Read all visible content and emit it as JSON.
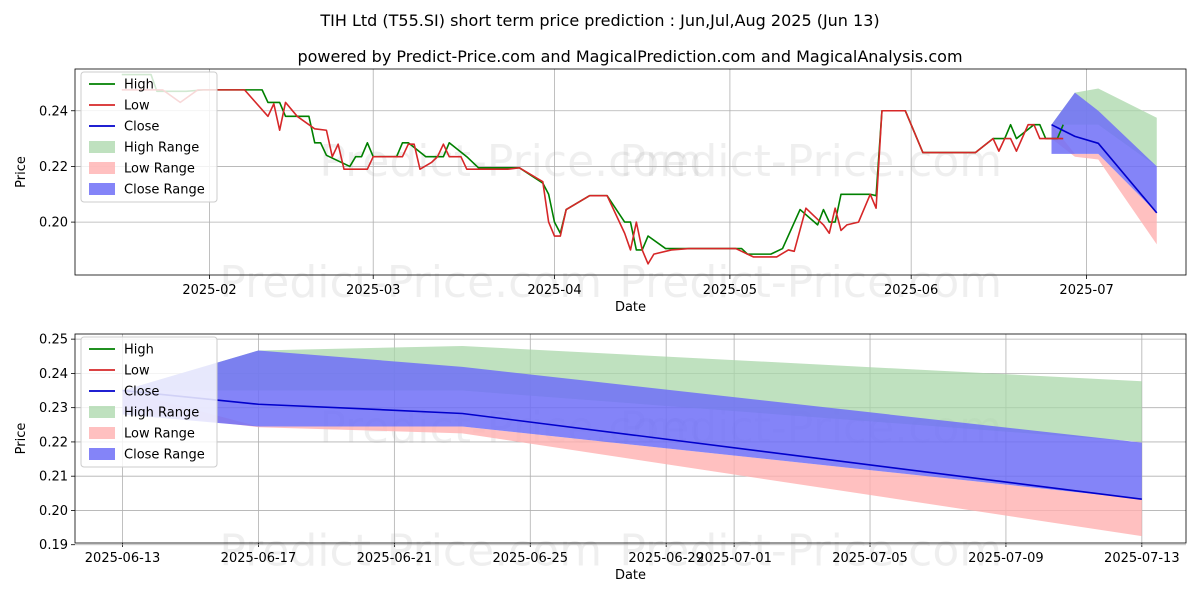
{
  "title": "TIH Ltd (T55.SI) short term price prediction : Jun,Jul,Aug 2025 (Jun 13)",
  "subtitle": "powered by Predict-Price.com and MagicalPrediction.com and MagicalAnalysis.com",
  "watermark": "Predict-Price.com",
  "colors": {
    "high": "#008000",
    "low": "#d62728",
    "close": "#0000cc",
    "high_range": "#a9d7a9",
    "low_range": "#ffb0b0",
    "close_range": "#6e6ef7"
  },
  "chart_data": [
    {
      "type": "line",
      "name": "history",
      "xlabel": "Date",
      "ylabel": "Price",
      "xlim": [
        "2025-01-09",
        "2025-07-18"
      ],
      "ylim": [
        0.181,
        0.255
      ],
      "x_ticks": [
        "2025-02-01",
        "2025-03-01",
        "2025-04-01",
        "2025-05-01",
        "2025-06-01",
        "2025-07-01"
      ],
      "x_tick_labels": [
        "2025-02",
        "2025-03",
        "2025-04",
        "2025-05",
        "2025-06",
        "2025-07"
      ],
      "y_ticks": [
        0.2,
        0.22,
        0.24
      ],
      "y_tick_labels": [
        "0.20",
        "0.22",
        "0.24"
      ],
      "legend": [
        "High",
        "Low",
        "Close",
        "High Range",
        "Low Range",
        "Close Range"
      ],
      "legend_position": "upper-left",
      "grid": true,
      "series": [
        {
          "name": "High",
          "points": [
            [
              "2025-01-17",
              0.253
            ],
            [
              "2025-01-22",
              0.253
            ],
            [
              "2025-01-23",
              0.247
            ],
            [
              "2025-01-28",
              0.247
            ],
            [
              "2025-01-31",
              0.2475
            ],
            [
              "2025-02-05",
              0.2475
            ],
            [
              "2025-02-10",
              0.2475
            ],
            [
              "2025-02-11",
              0.243
            ],
            [
              "2025-02-13",
              0.243
            ],
            [
              "2025-02-14",
              0.238
            ],
            [
              "2025-02-18",
              0.238
            ],
            [
              "2025-02-19",
              0.2285
            ],
            [
              "2025-02-20",
              0.2285
            ],
            [
              "2025-02-21",
              0.224
            ],
            [
              "2025-02-25",
              0.22
            ],
            [
              "2025-02-26",
              0.2235
            ],
            [
              "2025-02-27",
              0.2235
            ],
            [
              "2025-02-28",
              0.2285
            ],
            [
              "2025-03-01",
              0.2235
            ],
            [
              "2025-03-05",
              0.2235
            ],
            [
              "2025-03-06",
              0.2285
            ],
            [
              "2025-03-07",
              0.2285
            ],
            [
              "2025-03-10",
              0.2235
            ],
            [
              "2025-03-13",
              0.2235
            ],
            [
              "2025-03-14",
              0.2285
            ],
            [
              "2025-03-17",
              0.2235
            ],
            [
              "2025-03-19",
              0.2195
            ],
            [
              "2025-03-24",
              0.2195
            ],
            [
              "2025-03-26",
              0.2195
            ],
            [
              "2025-03-30",
              0.214
            ],
            [
              "2025-03-31",
              0.21
            ],
            [
              "2025-04-01",
              0.2
            ],
            [
              "2025-04-02",
              0.196
            ],
            [
              "2025-04-03",
              0.2045
            ],
            [
              "2025-04-07",
              0.2095
            ],
            [
              "2025-04-10",
              0.2095
            ],
            [
              "2025-04-13",
              0.2
            ],
            [
              "2025-04-14",
              0.2
            ],
            [
              "2025-04-15",
              0.19
            ],
            [
              "2025-04-16",
              0.19
            ],
            [
              "2025-04-17",
              0.195
            ],
            [
              "2025-04-20",
              0.1905
            ],
            [
              "2025-04-24",
              0.1905
            ],
            [
              "2025-04-28",
              0.1905
            ],
            [
              "2025-05-03",
              0.1905
            ],
            [
              "2025-05-04",
              0.1885
            ],
            [
              "2025-05-08",
              0.1885
            ],
            [
              "2025-05-10",
              0.1905
            ],
            [
              "2025-05-13",
              0.2045
            ],
            [
              "2025-05-16",
              0.199
            ],
            [
              "2025-05-17",
              0.2045
            ],
            [
              "2025-05-18",
              0.2
            ],
            [
              "2025-05-19",
              0.2
            ],
            [
              "2025-05-20",
              0.21
            ],
            [
              "2025-05-25",
              0.21
            ],
            [
              "2025-05-26",
              0.2095
            ],
            [
              "2025-05-27",
              0.24
            ],
            [
              "2025-05-31",
              0.24
            ],
            [
              "2025-06-03",
              0.225
            ],
            [
              "2025-06-06",
              0.225
            ],
            [
              "2025-06-12",
              0.225
            ],
            [
              "2025-06-15",
              0.23
            ],
            [
              "2025-06-17",
              0.23
            ],
            [
              "2025-06-18",
              0.235
            ],
            [
              "2025-06-19",
              0.23
            ],
            [
              "2025-06-22",
              0.235
            ],
            [
              "2025-06-23",
              0.235
            ],
            [
              "2025-06-24",
              0.23
            ],
            [
              "2025-06-26",
              0.23
            ],
            [
              "2025-06-27",
              0.235
            ]
          ]
        },
        {
          "name": "Low",
          "points": [
            [
              "2025-01-17",
              0.2475
            ],
            [
              "2025-01-24",
              0.2475
            ],
            [
              "2025-01-27",
              0.243
            ],
            [
              "2025-01-30",
              0.2475
            ],
            [
              "2025-02-05",
              0.2475
            ],
            [
              "2025-02-07",
              0.2475
            ],
            [
              "2025-02-11",
              0.238
            ],
            [
              "2025-02-12",
              0.2425
            ],
            [
              "2025-02-13",
              0.233
            ],
            [
              "2025-02-14",
              0.243
            ],
            [
              "2025-02-16",
              0.238
            ],
            [
              "2025-02-19",
              0.2335
            ],
            [
              "2025-02-21",
              0.233
            ],
            [
              "2025-02-22",
              0.2235
            ],
            [
              "2025-02-23",
              0.228
            ],
            [
              "2025-02-24",
              0.219
            ],
            [
              "2025-02-27",
              0.219
            ],
            [
              "2025-02-28",
              0.219
            ],
            [
              "2025-03-01",
              0.2235
            ],
            [
              "2025-03-05",
              0.2235
            ],
            [
              "2025-03-06",
              0.2235
            ],
            [
              "2025-03-07",
              0.228
            ],
            [
              "2025-03-08",
              0.228
            ],
            [
              "2025-03-09",
              0.219
            ],
            [
              "2025-03-11",
              0.2215
            ],
            [
              "2025-03-12",
              0.2235
            ],
            [
              "2025-03-13",
              0.228
            ],
            [
              "2025-03-14",
              0.2235
            ],
            [
              "2025-03-16",
              0.2235
            ],
            [
              "2025-03-17",
              0.219
            ],
            [
              "2025-03-20",
              0.219
            ],
            [
              "2025-03-24",
              0.219
            ],
            [
              "2025-03-26",
              0.2195
            ],
            [
              "2025-03-30",
              0.2145
            ],
            [
              "2025-03-31",
              0.2
            ],
            [
              "2025-04-01",
              0.195
            ],
            [
              "2025-04-02",
              0.195
            ],
            [
              "2025-04-03",
              0.2045
            ],
            [
              "2025-04-07",
              0.2095
            ],
            [
              "2025-04-10",
              0.2095
            ],
            [
              "2025-04-13",
              0.196
            ],
            [
              "2025-04-14",
              0.19
            ],
            [
              "2025-04-15",
              0.2
            ],
            [
              "2025-04-16",
              0.19
            ],
            [
              "2025-04-17",
              0.185
            ],
            [
              "2025-04-18",
              0.1885
            ],
            [
              "2025-04-21",
              0.19
            ],
            [
              "2025-04-24",
              0.1905
            ],
            [
              "2025-04-28",
              0.1905
            ],
            [
              "2025-05-02",
              0.1905
            ],
            [
              "2025-05-03",
              0.1895
            ],
            [
              "2025-05-05",
              0.1875
            ],
            [
              "2025-05-08",
              0.1875
            ],
            [
              "2025-05-09",
              0.1875
            ],
            [
              "2025-05-11",
              0.19
            ],
            [
              "2025-05-12",
              0.1895
            ],
            [
              "2025-05-14",
              0.205
            ],
            [
              "2025-05-17",
              0.199
            ],
            [
              "2025-05-18",
              0.196
            ],
            [
              "2025-05-19",
              0.205
            ],
            [
              "2025-05-20",
              0.197
            ],
            [
              "2025-05-21",
              0.199
            ],
            [
              "2025-05-23",
              0.2
            ],
            [
              "2025-05-25",
              0.21
            ],
            [
              "2025-05-26",
              0.205
            ],
            [
              "2025-05-27",
              0.24
            ],
            [
              "2025-05-31",
              0.24
            ],
            [
              "2025-06-03",
              0.225
            ],
            [
              "2025-06-06",
              0.225
            ],
            [
              "2025-06-12",
              0.225
            ],
            [
              "2025-06-15",
              0.23
            ],
            [
              "2025-06-16",
              0.2255
            ],
            [
              "2025-06-17",
              0.23
            ],
            [
              "2025-06-18",
              0.23
            ],
            [
              "2025-06-19",
              0.2255
            ],
            [
              "2025-06-21",
              0.235
            ],
            [
              "2025-06-22",
              0.235
            ],
            [
              "2025-06-23",
              0.23
            ],
            [
              "2025-06-25",
              0.23
            ],
            [
              "2025-06-27",
              0.23
            ]
          ]
        },
        {
          "name": "Close",
          "points": [
            [
              "2025-06-25",
              0.235
            ],
            [
              "2025-06-29",
              0.2308
            ],
            [
              "2025-07-03",
              0.2283
            ],
            [
              "2025-07-13",
              0.2033
            ]
          ]
        }
      ],
      "ranges": [
        {
          "name": "High Range",
          "points": [
            [
              "2025-06-25",
              0.235,
              0.235
            ],
            [
              "2025-06-29",
              0.2465,
              0.235
            ],
            [
              "2025-07-03",
              0.248,
              0.235
            ],
            [
              "2025-07-13",
              0.2375,
              0.22
            ]
          ]
        },
        {
          "name": "Low Range",
          "points": [
            [
              "2025-06-25",
              0.235,
              0.23
            ],
            [
              "2025-06-29",
              0.2245,
              0.2235
            ],
            [
              "2025-07-03",
              0.2245,
              0.2225
            ],
            [
              "2025-07-13",
              0.2033,
              0.192
            ]
          ]
        },
        {
          "name": "Close Range",
          "points": [
            [
              "2025-06-25",
              0.235,
              0.2245
            ],
            [
              "2025-06-29",
              0.2465,
              0.2245
            ],
            [
              "2025-07-03",
              0.24,
              0.2245
            ],
            [
              "2025-07-13",
              0.22,
              0.2033
            ]
          ]
        }
      ]
    },
    {
      "type": "line",
      "name": "prediction",
      "xlabel": "Date",
      "ylabel": "Price",
      "xlim": [
        "2025-06-11.6",
        "2025-07-14.3"
      ],
      "ylim": [
        0.1905,
        0.2515
      ],
      "x_ticks": [
        "2025-06-13",
        "2025-06-17",
        "2025-06-21",
        "2025-06-25",
        "2025-06-29",
        "2025-07-01",
        "2025-07-05",
        "2025-07-09",
        "2025-07-13"
      ],
      "x_tick_labels": [
        "2025-06-13",
        "2025-06-17",
        "2025-06-21",
        "2025-06-25",
        "2025-06-29",
        "2025-07-01",
        "2025-07-05",
        "2025-07-09",
        "2025-07-13"
      ],
      "y_ticks": [
        0.19,
        0.2,
        0.21,
        0.22,
        0.23,
        0.24,
        0.25
      ],
      "y_tick_labels": [
        "0.19",
        "0.20",
        "0.21",
        "0.22",
        "0.23",
        "0.24",
        "0.25"
      ],
      "legend": [
        "High",
        "Low",
        "Close",
        "High Range",
        "Low Range",
        "Close Range"
      ],
      "legend_position": "upper-left",
      "grid": true,
      "series": [
        {
          "name": "Close",
          "points": [
            [
              0,
              0.235
            ],
            [
              4,
              0.231
            ],
            [
              7,
              0.2297
            ],
            [
              10,
              0.2283
            ],
            [
              30,
              0.2033
            ]
          ]
        }
      ],
      "ranges": [
        {
          "name": "High Range",
          "points": [
            [
              0,
              0.235,
              0.235
            ],
            [
              4,
              0.2467,
              0.235
            ],
            [
              10,
              0.248,
              0.235
            ],
            [
              30,
              0.2377,
              0.22
            ]
          ]
        },
        {
          "name": "Low Range",
          "points": [
            [
              0,
              0.235,
              0.229
            ],
            [
              4,
              0.2245,
              0.2243
            ],
            [
              10,
              0.2245,
              0.2225
            ],
            [
              30,
              0.2033,
              0.1925
            ]
          ]
        },
        {
          "name": "Close Range",
          "points": [
            [
              0,
              0.235,
              0.228
            ],
            [
              4,
              0.2467,
              0.2245
            ],
            [
              10,
              0.2419,
              0.2245
            ],
            [
              30,
              0.2198,
              0.2033
            ]
          ]
        }
      ]
    }
  ]
}
